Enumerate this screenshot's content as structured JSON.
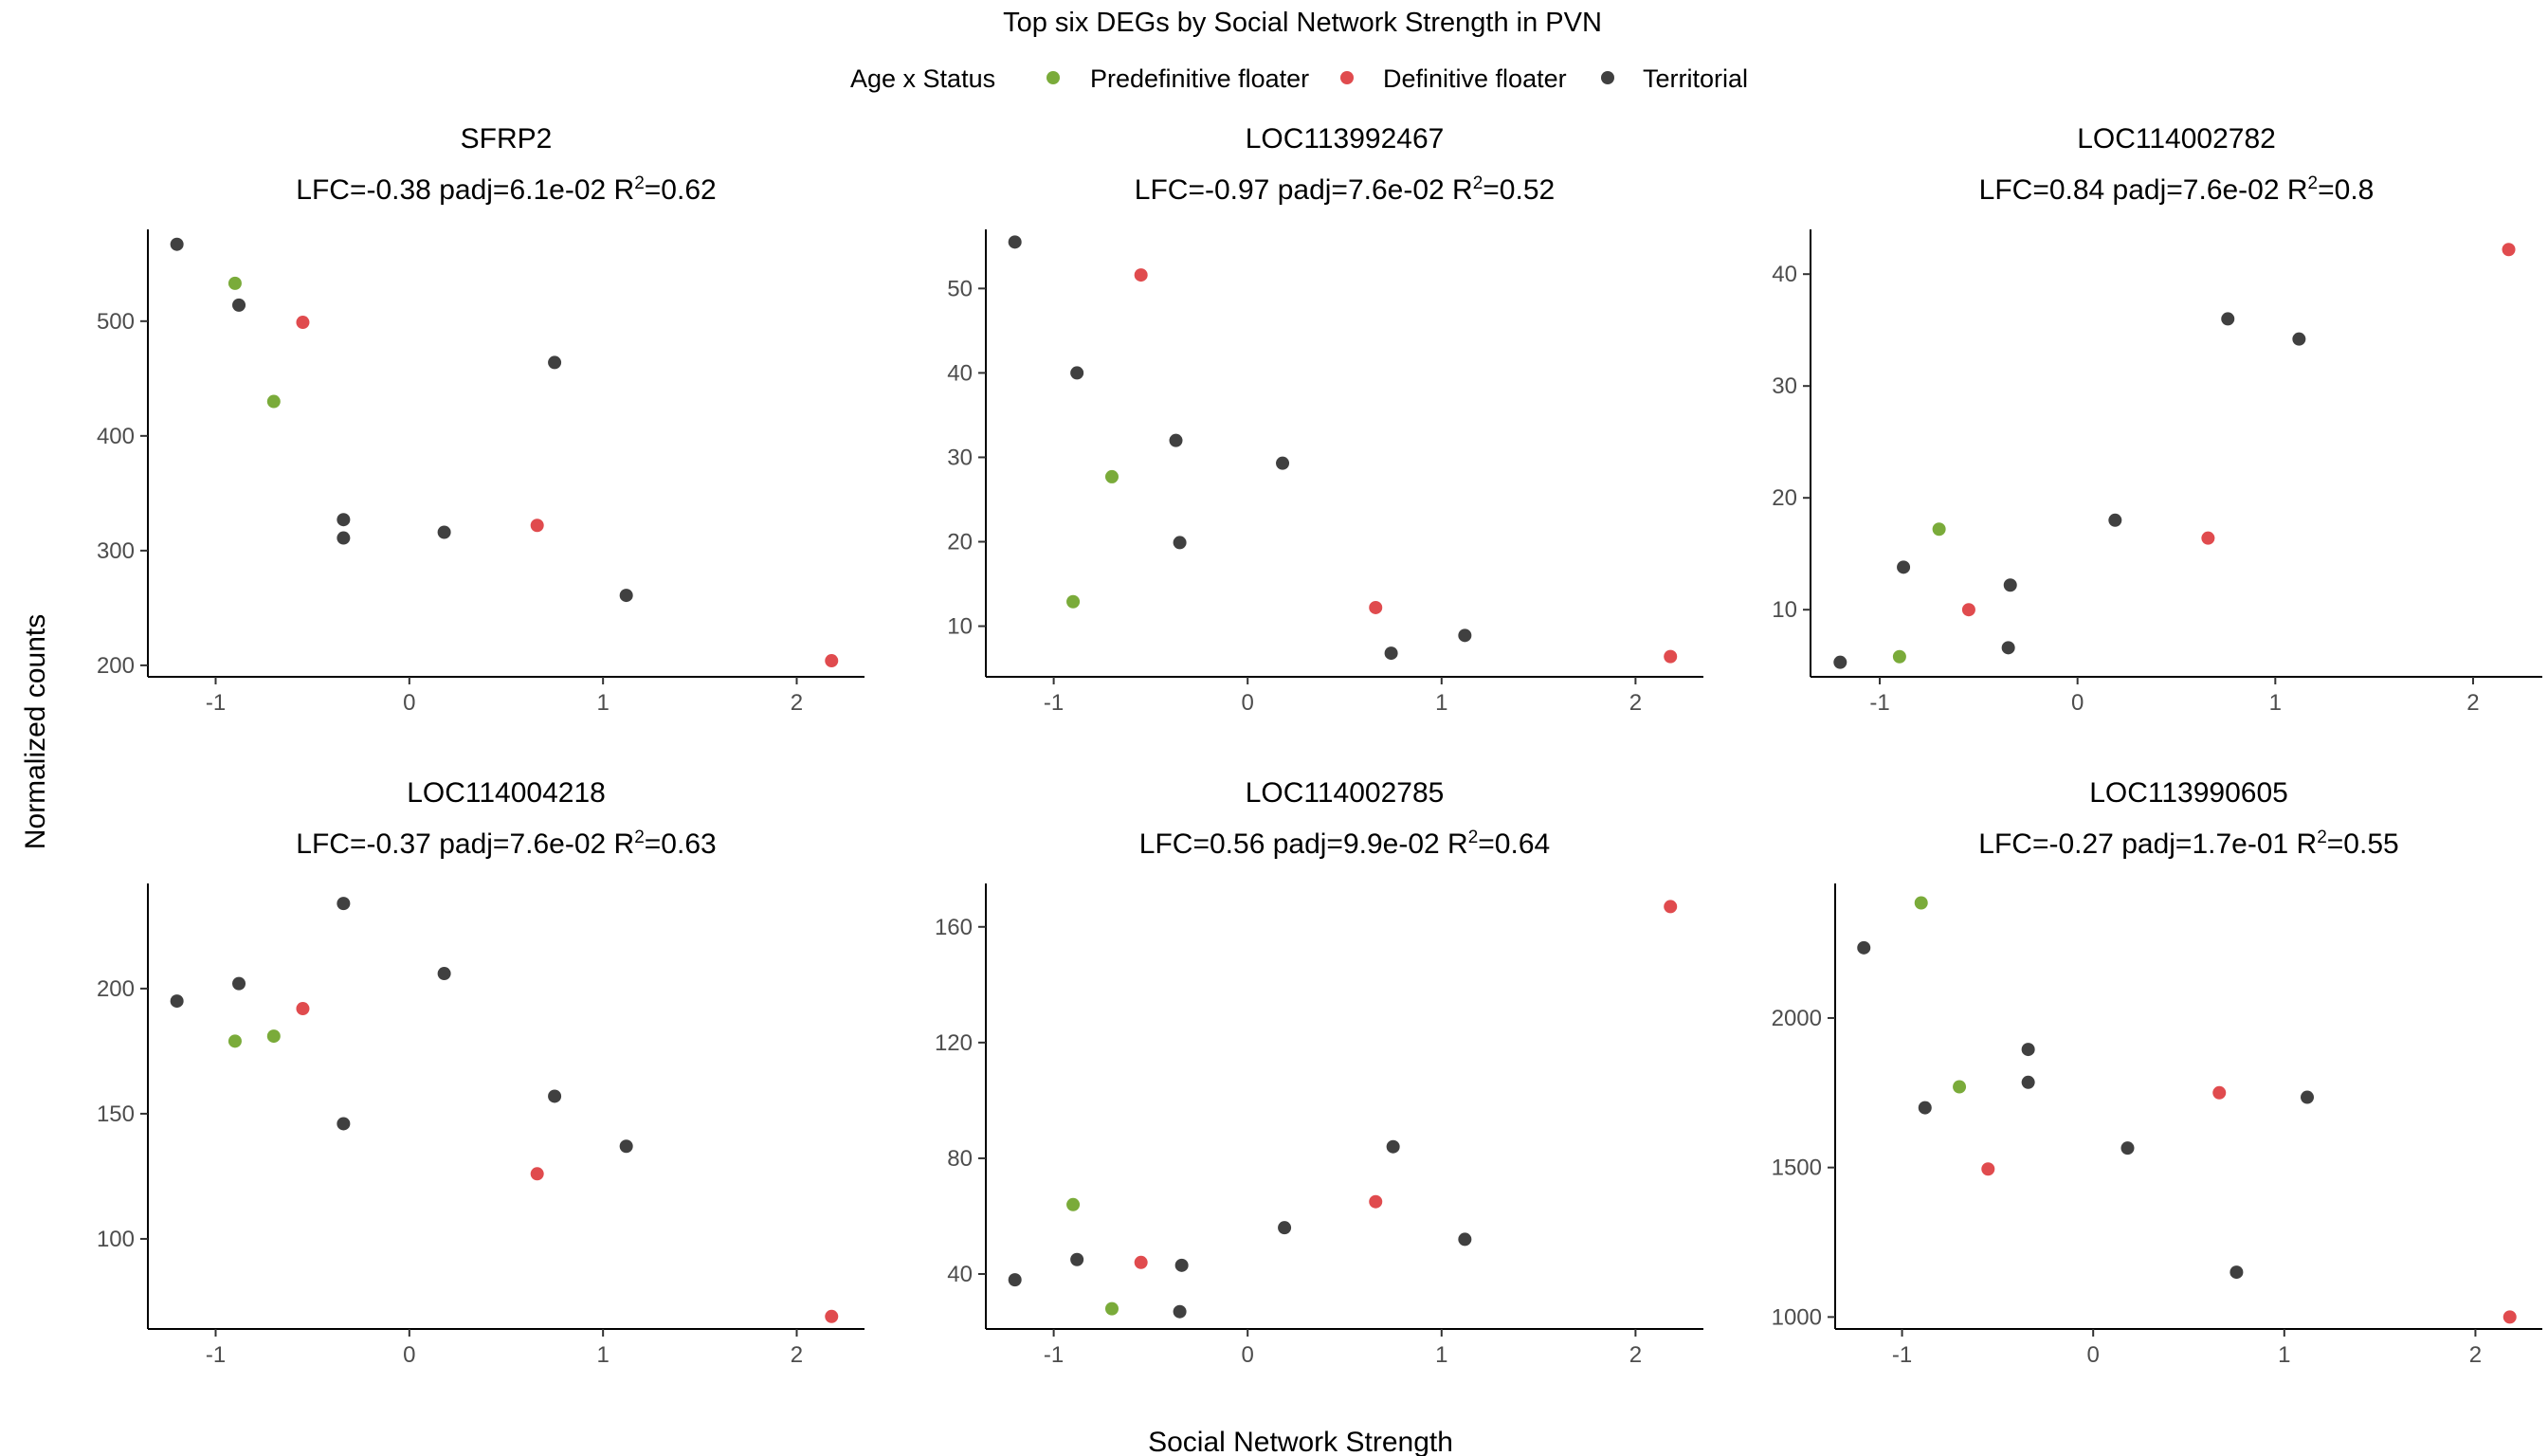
{
  "title": "Top six DEGs by Social Network Strength in PVN",
  "xlabel": "Social Network Strength",
  "ylabel": "Normalized counts",
  "legend": {
    "title": "Age x Status",
    "placement": "top",
    "items": [
      {
        "label": "Predefinitive floater",
        "color": "#7aab3a"
      },
      {
        "label": "Definitive floater",
        "color": "#e04b4e"
      },
      {
        "label": "Territorial",
        "color": "#404040"
      }
    ]
  },
  "chart_data": [
    {
      "type": "scatter",
      "gene": "SFRP2",
      "stats": {
        "lfc": "-0.38",
        "padj": "6.1e-02",
        "r2": "0.62"
      },
      "xlim": [
        -1.35,
        2.35
      ],
      "ylim": [
        190,
        580
      ],
      "xticks": [
        -1,
        0,
        1,
        2
      ],
      "yticks": [
        200,
        300,
        400,
        500
      ],
      "x": [
        -1.2,
        -0.88,
        -0.7,
        -0.34,
        -0.34,
        0.18,
        0.75,
        1.12,
        -0.9,
        -0.55,
        0.66,
        2.18
      ],
      "y": [
        567,
        514,
        430,
        327,
        311,
        316,
        464,
        261,
        533,
        499,
        322,
        204
      ],
      "group": [
        2,
        2,
        0,
        2,
        2,
        2,
        2,
        2,
        0,
        1,
        1,
        1
      ]
    },
    {
      "type": "scatter",
      "gene": "LOC113992467",
      "stats": {
        "lfc": "-0.97",
        "padj": "7.6e-02",
        "r2": "0.52"
      },
      "xlim": [
        -1.35,
        2.35
      ],
      "ylim": [
        4,
        57
      ],
      "xticks": [
        -1,
        0,
        1,
        2
      ],
      "yticks": [
        10,
        20,
        30,
        40,
        50
      ],
      "x": [
        -1.2,
        -0.88,
        -0.37,
        -0.35,
        0.18,
        0.74,
        1.12,
        -0.9,
        -0.7,
        -0.55,
        0.66,
        2.18
      ],
      "y": [
        55.5,
        40,
        32,
        19.9,
        29.3,
        6.8,
        8.9,
        12.9,
        27.7,
        51.6,
        12.2,
        6.4
      ],
      "group": [
        2,
        2,
        2,
        2,
        2,
        2,
        2,
        0,
        0,
        1,
        1,
        1
      ]
    },
    {
      "type": "scatter",
      "gene": "LOC114002782",
      "stats": {
        "lfc": "0.84",
        "padj": "7.6e-02",
        "r2": "0.8"
      },
      "xlim": [
        -1.35,
        2.35
      ],
      "ylim": [
        4,
        44
      ],
      "xticks": [
        -1,
        0,
        1,
        2
      ],
      "yticks": [
        10,
        20,
        30,
        40
      ],
      "x": [
        -1.2,
        -0.88,
        -0.34,
        -0.35,
        0.19,
        0.76,
        1.12,
        -0.9,
        -0.7,
        -0.55,
        0.66,
        2.18
      ],
      "y": [
        5.3,
        13.8,
        12.2,
        6.6,
        18,
        36,
        34.2,
        5.8,
        17.2,
        10,
        16.4,
        42.2
      ],
      "group": [
        2,
        2,
        2,
        2,
        2,
        2,
        2,
        0,
        0,
        1,
        1,
        1
      ]
    },
    {
      "type": "scatter",
      "gene": "LOC114004218",
      "stats": {
        "lfc": "-0.37",
        "padj": "7.6e-02",
        "r2": "0.63"
      },
      "xlim": [
        -1.35,
        2.35
      ],
      "ylim": [
        64,
        242
      ],
      "xticks": [
        -1,
        0,
        1,
        2
      ],
      "yticks": [
        100,
        150,
        200
      ],
      "x": [
        -1.2,
        -0.88,
        -0.34,
        -0.34,
        0.18,
        0.75,
        1.12,
        -0.9,
        -0.7,
        -0.55,
        0.66,
        2.18
      ],
      "y": [
        195,
        202,
        234,
        146,
        206,
        157,
        137,
        179,
        181,
        192,
        126,
        69
      ],
      "group": [
        2,
        2,
        2,
        2,
        2,
        2,
        2,
        0,
        0,
        1,
        1,
        1
      ]
    },
    {
      "type": "scatter",
      "gene": "LOC114002785",
      "stats": {
        "lfc": "0.56",
        "padj": "9.9e-02",
        "r2": "0.64"
      },
      "xlim": [
        -1.35,
        2.35
      ],
      "ylim": [
        21,
        175
      ],
      "xticks": [
        -1,
        0,
        1,
        2
      ],
      "yticks": [
        40,
        80,
        120,
        160
      ],
      "x": [
        -1.2,
        -0.88,
        -0.34,
        -0.35,
        0.19,
        0.75,
        1.12,
        -0.9,
        -0.7,
        -0.55,
        0.66,
        2.18
      ],
      "y": [
        38,
        45,
        43,
        27,
        56,
        84,
        52,
        64,
        28,
        44,
        65,
        167
      ],
      "group": [
        2,
        2,
        2,
        2,
        2,
        2,
        2,
        0,
        0,
        1,
        1,
        1
      ]
    },
    {
      "type": "scatter",
      "gene": "LOC113990605",
      "stats": {
        "lfc": "-0.27",
        "padj": "1.7e-01",
        "r2": "0.55"
      },
      "xlim": [
        -1.35,
        2.35
      ],
      "ylim": [
        960,
        2450
      ],
      "xticks": [
        -1,
        0,
        1,
        2
      ],
      "yticks": [
        1000,
        1500,
        2000
      ],
      "x": [
        -1.2,
        -0.88,
        -0.34,
        -0.34,
        0.18,
        0.75,
        1.12,
        -0.9,
        -0.7,
        -0.55,
        0.66,
        2.18
      ],
      "y": [
        2235,
        1700,
        1895,
        1785,
        1565,
        1150,
        1735,
        2385,
        1770,
        1495,
        1750,
        1000
      ],
      "group": [
        2,
        2,
        2,
        2,
        2,
        2,
        2,
        0,
        0,
        1,
        1,
        1
      ]
    }
  ]
}
